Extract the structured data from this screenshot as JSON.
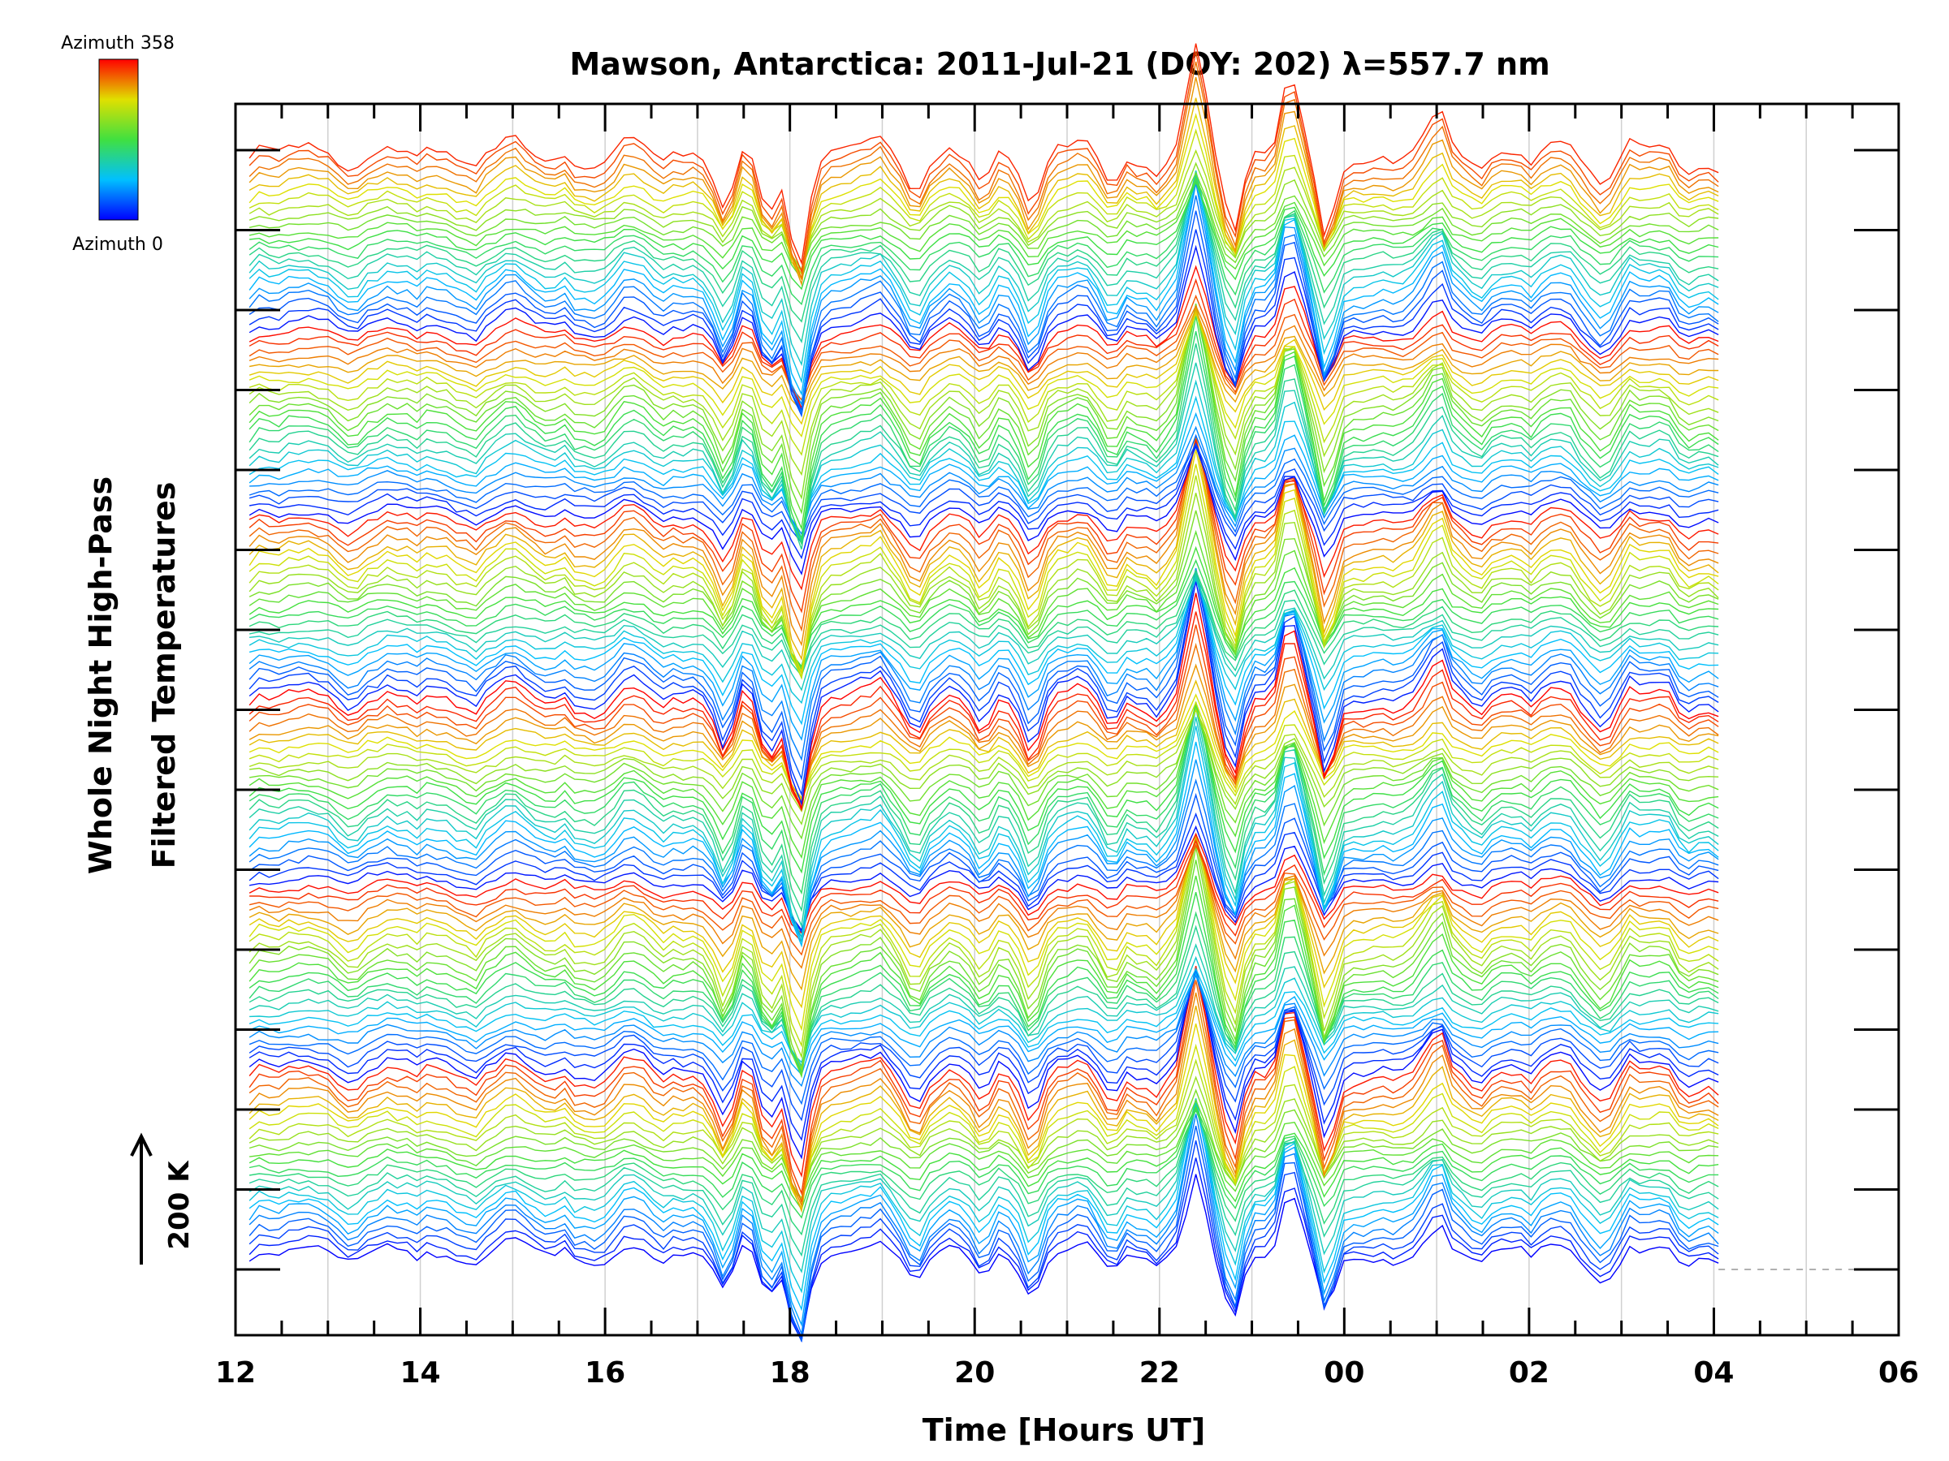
{
  "chart_data": {
    "type": "line",
    "title": "Mawson, Antarctica: 2011-Jul-21 (DOY: 202) λ=557.7 nm",
    "xlabel": "Time [Hours UT]",
    "ylabel_lines": [
      "Whole Night High-Pass",
      "Filtered Temperatures"
    ],
    "x_tick_labels": [
      "12",
      "14",
      "16",
      "18",
      "20",
      "22",
      "00",
      "02",
      "04",
      "06"
    ],
    "x_tick_hours": [
      12,
      14,
      16,
      18,
      20,
      22,
      24,
      26,
      28,
      30
    ],
    "xlim_hours": [
      12,
      30
    ],
    "data_range_hours": [
      12.15,
      28.05
    ],
    "scale_bar": {
      "label": "200 K",
      "value_K": 200
    },
    "colorbar": {
      "top_label": "Azimuth 358",
      "bottom_label": "Azimuth 0",
      "range_deg": [
        0,
        358
      ]
    },
    "grid": {
      "vertical": true,
      "horizontal": false
    },
    "num_stacked_traces": 142,
    "azimuth_cycles": 6,
    "dominant_features": [
      {
        "hour": 17.3,
        "depth_K": 80
      },
      {
        "hour": 17.75,
        "depth_K": 110
      },
      {
        "hour": 18.1,
        "depth_K": 190
      },
      {
        "hour": 19.4,
        "depth_K": 40
      },
      {
        "hour": 20.1,
        "depth_K": 55
      },
      {
        "hour": 20.6,
        "depth_K": 60
      },
      {
        "hour": 21.5,
        "depth_K": 55
      },
      {
        "hour": 22.4,
        "peak_K": 170
      },
      {
        "hour": 22.8,
        "depth_K": 140
      },
      {
        "hour": 23.4,
        "peak_K": 150
      },
      {
        "hour": 23.8,
        "depth_K": 160
      },
      {
        "hour": 25.0,
        "peak_K": 45
      },
      {
        "hour": 26.8,
        "depth_K": 40
      },
      {
        "hour": 27.7,
        "depth_K": 50
      }
    ],
    "colors": {
      "line_high_az": "#ff0000",
      "line_low_az": "#0000ff",
      "grid": "#d0d0d0",
      "axis": "#000000"
    }
  }
}
